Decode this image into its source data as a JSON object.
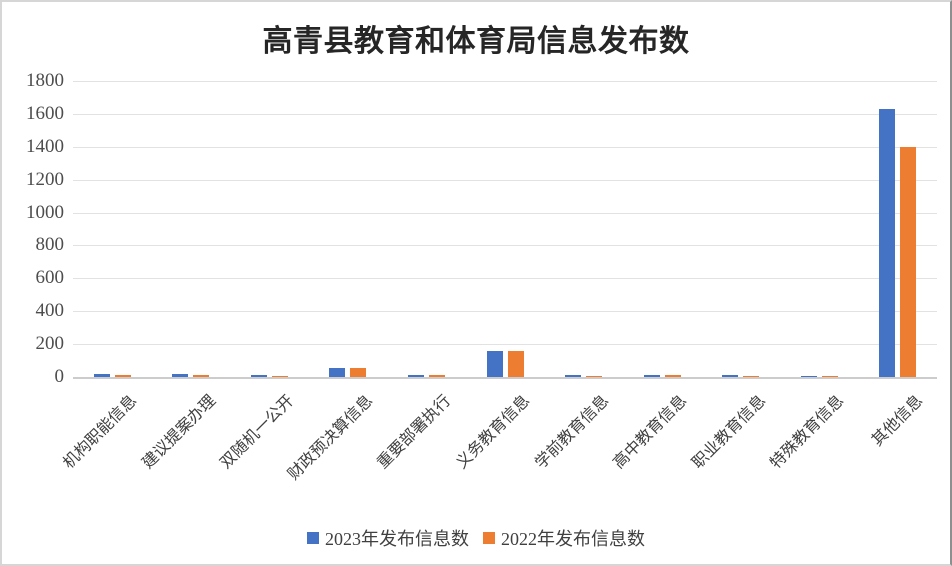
{
  "page": {
    "background": "#ffffff",
    "border_color": "#d6d6d6"
  },
  "chart_data": {
    "type": "bar",
    "title": "高青县教育和体育局信息发布数",
    "categories": [
      "机构职能信息",
      "建议提案办理",
      "双随机一公开",
      "财政预决算信息",
      "重要部署执行",
      "义务教育信息",
      "学前教育信息",
      "高中教育信息",
      "职业教育信息",
      "特殊教育信息",
      "其他信息"
    ],
    "series": [
      {
        "key": "2023",
        "name": "2023年发布信息数",
        "color": "#4472C4",
        "values": [
          18,
          18,
          10,
          55,
          12,
          160,
          14,
          12,
          10,
          8,
          1632
        ]
      },
      {
        "key": "2022",
        "name": "2022年发布信息数",
        "color": "#ED7D31",
        "values": [
          10,
          15,
          8,
          55,
          10,
          160,
          8,
          10,
          8,
          6,
          1400
        ]
      }
    ],
    "xlabel": "",
    "ylabel": "",
    "ylim": [
      0,
      1800
    ],
    "ytick_step": 200,
    "yticks": [
      0,
      200,
      400,
      600,
      800,
      1000,
      1200,
      1400,
      1600,
      1800
    ],
    "grid": "horizontal",
    "legend_position": "bottom",
    "colors": {
      "gridline": "#e2e2e2",
      "axis_line": "#cccccc",
      "tick_label": "#4d4d4d",
      "x_label": "#404040",
      "title": "#262626"
    }
  }
}
